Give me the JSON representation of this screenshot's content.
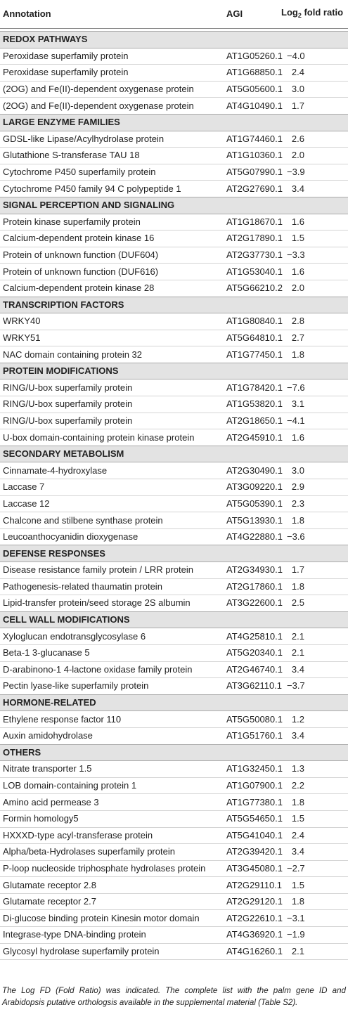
{
  "table": {
    "header": {
      "annotation": "Annotation",
      "agi": "AGI",
      "log": "Log",
      "log_sub": "2",
      "log_rest": "fold ratio"
    },
    "sections": [
      {
        "title": "REDOX PATHWAYS",
        "rows": [
          [
            "Peroxidase superfamily protein",
            "AT1G05260.1",
            "−4.0"
          ],
          [
            "Peroxidase superfamily protein",
            "AT1G68850.1",
            "2.4"
          ],
          [
            "(2OG) and Fe(II)-dependent oxygenase protein",
            "AT5G05600.1",
            "3.0"
          ],
          [
            "(2OG) and Fe(II)-dependent oxygenase protein",
            "AT4G10490.1",
            "1.7"
          ]
        ]
      },
      {
        "title": "LARGE ENZYME FAMILIES",
        "rows": [
          [
            "GDSL-like Lipase/Acylhydrolase protein",
            "AT1G74460.1",
            "2.6"
          ],
          [
            "Glutathione S-transferase TAU 18",
            "AT1G10360.1",
            "2.0"
          ],
          [
            "Cytochrome P450 superfamily protein",
            "AT5G07990.1",
            "−3.9"
          ],
          [
            "Cytochrome P450 family 94 C polypeptide 1",
            "AT2G27690.1",
            "3.4"
          ]
        ]
      },
      {
        "title": "SIGNAL PERCEPTION AND SIGNALING",
        "rows": [
          [
            "Protein kinase superfamily protein",
            "AT1G18670.1",
            "1.6"
          ],
          [
            "Calcium-dependent protein kinase 16",
            "AT2G17890.1",
            "1.5"
          ],
          [
            "Protein of unknown function (DUF604)",
            "AT2G37730.1",
            "−3.3"
          ],
          [
            "Protein of unknown function (DUF616)",
            "AT1G53040.1",
            "1.6"
          ],
          [
            "Calcium-dependent protein kinase 28",
            "AT5G66210.2",
            "2.0"
          ]
        ]
      },
      {
        "title": "TRANSCRIPTION FACTORS",
        "rows": [
          [
            "WRKY40",
            "AT1G80840.1",
            "2.8"
          ],
          [
            "WRKY51",
            "AT5G64810.1",
            "2.7"
          ],
          [
            "NAC domain containing protein 32",
            "AT1G77450.1",
            "1.8"
          ]
        ]
      },
      {
        "title": "PROTEIN MODIFICATIONS",
        "rows": [
          [
            "RING/U-box superfamily protein",
            "AT1G78420.1",
            "−7.6"
          ],
          [
            "RING/U-box superfamily protein",
            "AT1G53820.1",
            "3.1"
          ],
          [
            "RING/U-box superfamily protein",
            "AT2G18650.1",
            "−4.1"
          ],
          [
            "U-box domain-containing protein kinase protein",
            "AT2G45910.1",
            "1.6"
          ]
        ]
      },
      {
        "title": "SECONDARY METABOLISM",
        "rows": [
          [
            "Cinnamate-4-hydroxylase",
            "AT2G30490.1",
            "3.0"
          ],
          [
            "Laccase 7",
            "AT3G09220.1",
            "2.9"
          ],
          [
            "Laccase 12",
            "AT5G05390.1",
            "2.3"
          ],
          [
            "Chalcone and stilbene synthase protein",
            "AT5G13930.1",
            "1.8"
          ],
          [
            "Leucoanthocyanidin dioxygenase",
            "AT4G22880.1",
            "−3.6"
          ]
        ]
      },
      {
        "title": "DEFENSE RESPONSES",
        "rows": [
          [
            "Disease resistance family protein / LRR protein",
            "AT2G34930.1",
            "1.7"
          ],
          [
            "Pathogenesis-related thaumatin protein",
            "AT2G17860.1",
            "1.8"
          ],
          [
            "Lipid-transfer protein/seed storage 2S albumin",
            "AT3G22600.1",
            "2.5"
          ]
        ]
      },
      {
        "title": "CELL WALL MODIFICATIONS",
        "rows": [
          [
            "Xyloglucan endotransglycosylase 6",
            "AT4G25810.1",
            "2.1"
          ],
          [
            "Beta-1 3-glucanase 5",
            "AT5G20340.1",
            "2.1"
          ],
          [
            "D-arabinono-1 4-lactone oxidase family protein",
            "AT2G46740.1",
            "3.4"
          ],
          [
            "Pectin lyase-like superfamily protein",
            "AT3G62110.1",
            "−3.7"
          ]
        ]
      },
      {
        "title": "HORMONE-RELATED",
        "rows": [
          [
            "Ethylene response factor 110",
            "AT5G50080.1",
            "1.2"
          ],
          [
            "Auxin amidohydrolase",
            "AT1G51760.1",
            "3.4"
          ]
        ]
      },
      {
        "title": "OTHERS",
        "rows": [
          [
            "Nitrate transporter 1.5",
            "AT1G32450.1",
            "1.3"
          ],
          [
            "LOB domain-containing protein 1",
            "AT1G07900.1",
            "2.2"
          ],
          [
            "Amino acid permease 3",
            "AT1G77380.1",
            "1.8"
          ],
          [
            "Formin homology5",
            "AT5G54650.1",
            "1.5"
          ],
          [
            "HXXXD-type acyl-transferase protein",
            "AT5G41040.1",
            "2.4"
          ],
          [
            "Alpha/beta-Hydrolases superfamily protein",
            "AT2G39420.1",
            "3.4"
          ],
          [
            "P-loop nucleoside triphosphate hydrolases protein",
            "AT3G45080.1",
            "−2.7"
          ],
          [
            "Glutamate receptor 2.8",
            "AT2G29110.1",
            "1.5"
          ],
          [
            "Glutamate receptor 2.7",
            "AT2G29120.1",
            "1.8"
          ],
          [
            "Di-glucose binding protein Kinesin motor domain",
            "AT2G22610.1",
            "−3.1"
          ],
          [
            "Integrase-type DNA-binding protein",
            "AT4G36920.1",
            "−1.9"
          ],
          [
            "Glycosyl hydrolase superfamily protein",
            "AT4G16260.1",
            "2.1"
          ]
        ]
      }
    ],
    "footnote": "The Log FD (Fold Ratio) was indicated. The complete list with the palm gene ID and Arabidopsis putative orthologsis available in the supplemental material (Table S2)."
  }
}
